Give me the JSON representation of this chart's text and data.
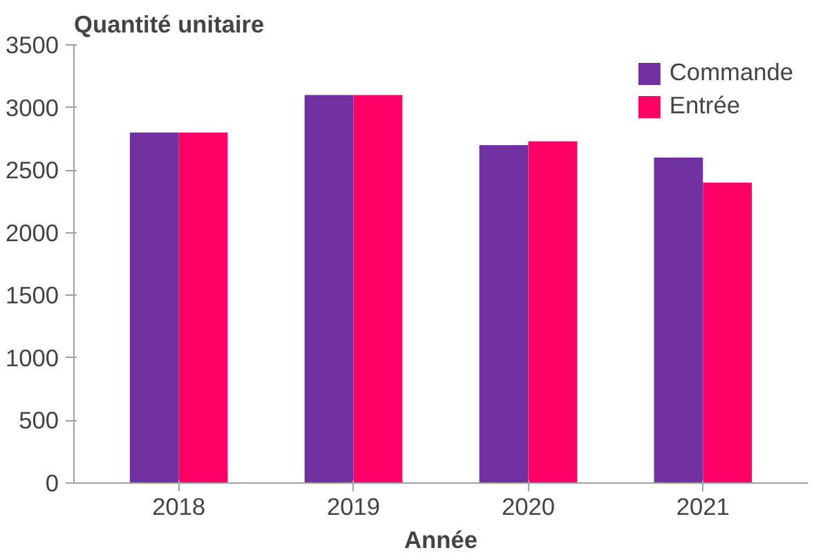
{
  "chart_data": {
    "type": "bar",
    "ylabel": "Quantité unitaire",
    "xlabel": "Année",
    "categories": [
      "2018",
      "2019",
      "2020",
      "2021"
    ],
    "series": [
      {
        "name": "Commande",
        "color": "#7030a0",
        "values": [
          2800,
          3100,
          2700,
          2600
        ]
      },
      {
        "name": "Entrée",
        "color": "#ff0066",
        "values": [
          2800,
          3100,
          2730,
          2400
        ]
      }
    ],
    "ylim": [
      0,
      3500
    ],
    "yticks": [
      0,
      500,
      1000,
      1500,
      2000,
      2500,
      3000,
      3500
    ],
    "grid": false,
    "legend": "top right"
  }
}
